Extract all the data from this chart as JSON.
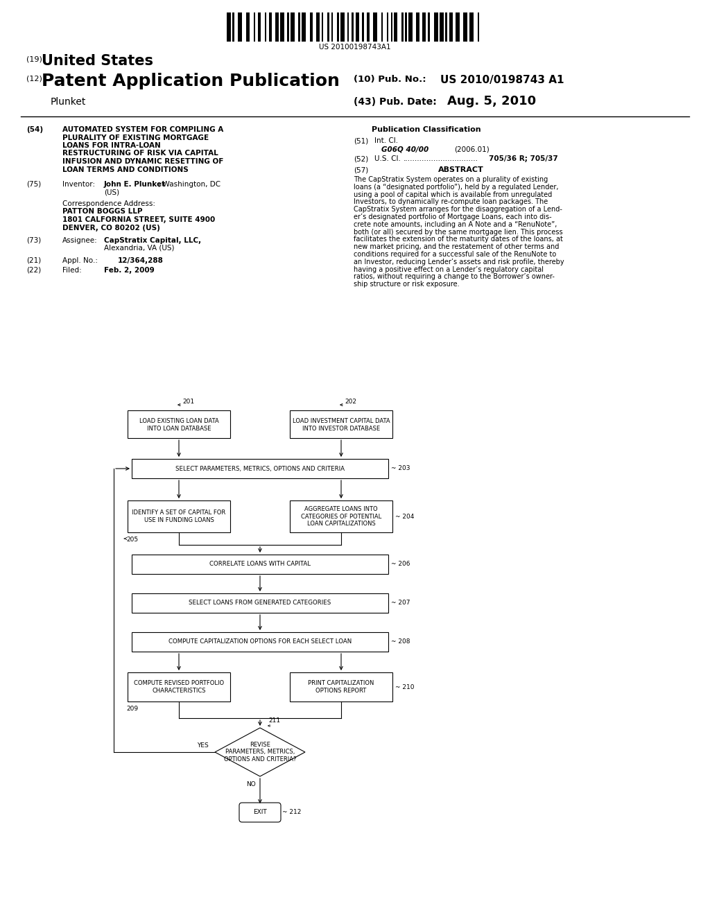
{
  "bg_color": "#ffffff",
  "barcode_text": "US 20100198743A1",
  "header": {
    "line19_prefix": "(19)",
    "line19_text": "United States",
    "line12_prefix": "(12)",
    "line12_text": "Patent Application Publication",
    "pub_no_label": "(10) Pub. No.:",
    "pub_no": "US 2010/0198743 A1",
    "inventor_label": "Plunket",
    "date_label": "(43) Pub. Date:",
    "date": "Aug. 5, 2010"
  },
  "left_col": {
    "field54_label": "(54)",
    "field54_lines": [
      "AUTOMATED SYSTEM FOR COMPILING A",
      "PLURALITY OF EXISTING MORTGAGE",
      "LOANS FOR INTRA-LOAN",
      "RESTRUCTURING OF RISK VIA CAPITAL",
      "INFUSION AND DYNAMIC RESETTING OF",
      "LOAN TERMS AND CONDITIONS"
    ],
    "field75_label": "(75)",
    "field75_title": "Inventor:",
    "field75_name": "John E. Plunket",
    "field75_loc": ", Washington, DC",
    "field75_us": "(US)",
    "corr_title": "Correspondence Address:",
    "corr_line1": "PATTON BOGGS LLP",
    "corr_line2": "1801 CALFORNIA STREET, SUITE 4900",
    "corr_line3": "DENVER, CO 80202 (US)",
    "field73_label": "(73)",
    "field73_title": "Assignee:",
    "field73_name": "CapStratix Capital, LLC,",
    "field73_loc": "Alexandria, VA (US)",
    "field21_label": "(21)",
    "field21_title": "Appl. No.:",
    "field21_value": "12/364,288",
    "field22_label": "(22)",
    "field22_title": "Filed:",
    "field22_value": "Feb. 2, 2009"
  },
  "right_col": {
    "pub_class_title": "Publication Classification",
    "field51_label": "(51)",
    "field51_title": "Int. Cl.",
    "field51_class": "G06Q 40/00",
    "field51_year": "(2006.01)",
    "field52_label": "(52)",
    "field52_title": "U.S. Cl.",
    "field52_dots": "................................",
    "field52_value": "705/36 R; 705/37",
    "field57_label": "(57)",
    "field57_title": "ABSTRACT",
    "abstract_lines": [
      "The CapStratix System operates on a plurality of existing",
      "loans (a “designated portfolio”), held by a regulated Lender,",
      "using a pool of capital which is available from unregulated",
      "Investors, to dynamically re-compute loan packages. The",
      "CapStratix System arranges for the disaggregation of a Lend-",
      "er’s designated portfolio of Mortgage Loans, each into dis-",
      "crete note amounts, including an A Note and a “RenuNote”,",
      "both (or all) secured by the same mortgage lien. This process",
      "facilitates the extension of the maturity dates of the loans, at",
      "new market pricing, and the restatement of other terms and",
      "conditions required for a successful sale of the RenuNote to",
      "an Investor, reducing Lender’s assets and risk profile, thereby",
      "having a positive effect on a Lender’s regulatory capital",
      "ratios, without requiring a change to the Borrower’s owner-",
      "ship structure or risk exposure."
    ]
  },
  "diagram": {
    "box201": "LOAD EXISTING LOAN DATA\nINTO LOAN DATABASE",
    "box202": "LOAD INVESTMENT CAPITAL DATA\nINTO INVESTOR DATABASE",
    "box203": "SELECT PARAMETERS, METRICS, OPTIONS AND CRITERIA",
    "box204_left": "IDENTIFY A SET OF CAPITAL FOR\nUSE IN FUNDING LOANS",
    "box204_right": "AGGREGATE LOANS INTO\nCATEGORIES OF POTENTIAL\nLOAN CAPITALIZATIONS",
    "box206": "CORRELATE LOANS WITH CAPITAL",
    "box207": "SELECT LOANS FROM GENERATED CATEGORIES",
    "box208": "COMPUTE CAPITALIZATION OPTIONS FOR EACH SELECT LOAN",
    "box209": "COMPUTE REVISED PORTFOLIO\nCHARACTERISTICS",
    "box210": "PRINT CAPITALIZATION\nOPTIONS REPORT",
    "diamond211": "REVISE\nPARAMETERS, METRICS,\nOPTIONS AND CRITERIA?",
    "oval212": "EXIT",
    "yes_label": "YES",
    "no_label": "NO"
  }
}
